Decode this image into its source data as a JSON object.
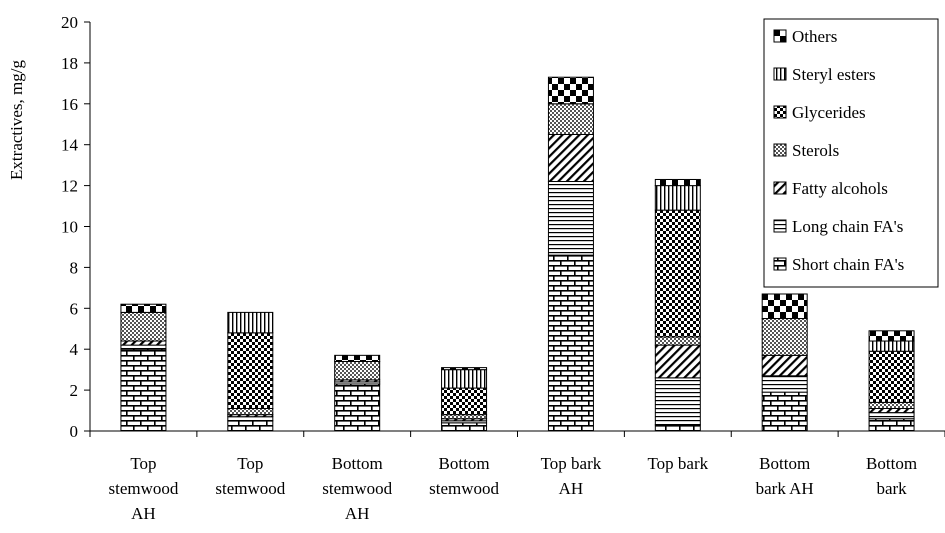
{
  "chart_data": {
    "type": "bar",
    "stacked": true,
    "ylabel": "Extractives, mg/g",
    "ylim": [
      0,
      20
    ],
    "yticks": [
      0,
      2,
      4,
      6,
      8,
      10,
      12,
      14,
      16,
      18,
      20
    ],
    "grid": false,
    "legend_position": "top-right",
    "categories": [
      [
        "Top",
        "stemwood",
        "AH"
      ],
      [
        "Top",
        "stemwood"
      ],
      [
        "Bottom",
        "stemwood",
        "AH"
      ],
      [
        "Bottom",
        "stemwood"
      ],
      [
        "Top bark",
        "AH"
      ],
      [
        "Top bark"
      ],
      [
        "Bottom",
        "bark AH"
      ],
      [
        "Bottom",
        "bark"
      ]
    ],
    "series": [
      {
        "name": "Short chain FA's",
        "pattern": "brick",
        "values": [
          4.0,
          0.5,
          2.3,
          0.4,
          8.6,
          0.3,
          1.9,
          0.6
        ]
      },
      {
        "name": "Long chain FA's",
        "pattern": "hlines",
        "values": [
          0.2,
          0.2,
          0.1,
          0.1,
          3.6,
          2.3,
          0.8,
          0.3
        ]
      },
      {
        "name": "Fatty alcohols",
        "pattern": "diag",
        "values": [
          0.2,
          0.1,
          0.1,
          0.1,
          2.3,
          1.6,
          1.0,
          0.2
        ]
      },
      {
        "name": "Sterols",
        "pattern": "dots",
        "values": [
          1.4,
          0.3,
          0.9,
          0.2,
          1.5,
          0.4,
          1.8,
          0.3
        ]
      },
      {
        "name": "Glycerides",
        "pattern": "check",
        "values": [
          0.0,
          3.7,
          0.0,
          1.3,
          0.0,
          6.2,
          0.0,
          2.5
        ]
      },
      {
        "name": "Steryl esters",
        "pattern": "vlines",
        "values": [
          0.0,
          1.0,
          0.0,
          0.9,
          0.0,
          1.2,
          0.0,
          0.5
        ]
      },
      {
        "name": "Others",
        "pattern": "checker",
        "values": [
          0.4,
          0.0,
          0.3,
          0.1,
          1.3,
          0.3,
          1.2,
          0.5
        ]
      }
    ]
  }
}
